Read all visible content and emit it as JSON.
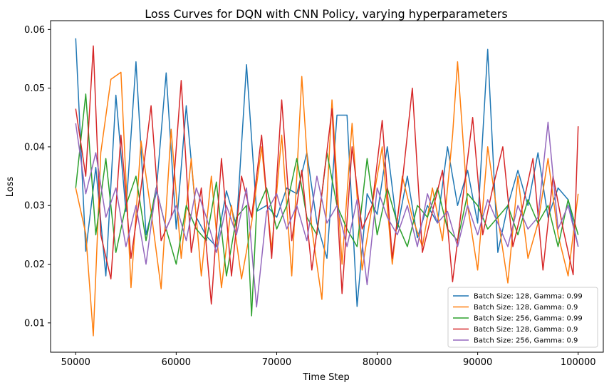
{
  "chart_data": {
    "type": "line",
    "title": "Loss Curves for DQN with CNN Policy, varying hyperparameters",
    "xlabel": "Time Step",
    "ylabel": "Loss",
    "xlim": [
      47500,
      102500
    ],
    "ylim": [
      0.005,
      0.0615
    ],
    "xticks": [
      50000,
      60000,
      70000,
      80000,
      90000,
      100000
    ],
    "xtick_labels": [
      "50000",
      "60000",
      "70000",
      "80000",
      "90000",
      "100000"
    ],
    "yticks": [
      0.01,
      0.02,
      0.03,
      0.04,
      0.05,
      0.06
    ],
    "ytick_labels": [
      "0.01",
      "0.02",
      "0.03",
      "0.04",
      "0.05",
      "0.06"
    ],
    "grid": false,
    "legend_position": "lower-right",
    "series": [
      {
        "name": "Batch Size: 128, Gamma: 0.99",
        "color": "#1f77b4",
        "x": [
          50000,
          51000,
          52000,
          53000,
          54000,
          55000,
          56000,
          57000,
          58000,
          59000,
          60000,
          61000,
          62000,
          63000,
          64000,
          65000,
          66000,
          67000,
          68000,
          69000,
          70000,
          71000,
          72000,
          73000,
          74000,
          75000,
          76000,
          77000,
          78000,
          79000,
          80000,
          81000,
          82000,
          83000,
          84000,
          85000,
          86000,
          87000,
          88000,
          89000,
          90000,
          91000,
          92000,
          93000,
          94000,
          95000,
          96000,
          97000,
          98000,
          99000,
          100000
        ],
        "y": [
          0.0585,
          0.0222,
          0.0365,
          0.018,
          0.0488,
          0.029,
          0.0545,
          0.025,
          0.032,
          0.0526,
          0.026,
          0.047,
          0.028,
          0.0248,
          0.023,
          0.0325,
          0.0265,
          0.054,
          0.029,
          0.03,
          0.028,
          0.033,
          0.032,
          0.039,
          0.027,
          0.021,
          0.0454,
          0.0454,
          0.0128,
          0.032,
          0.0285,
          0.04,
          0.026,
          0.035,
          0.0245,
          0.03,
          0.027,
          0.04,
          0.03,
          0.036,
          0.027,
          0.0566,
          0.022,
          0.03,
          0.036,
          0.03,
          0.039,
          0.028,
          0.033,
          0.031,
          0.023
        ]
      },
      {
        "name": "Batch Size: 128, Gamma: 0.9",
        "color": "#ff7f0e",
        "x": [
          50000,
          51000,
          51750,
          52500,
          53500,
          54500,
          55500,
          56500,
          57500,
          58500,
          59500,
          60500,
          61500,
          62500,
          63500,
          64500,
          65500,
          66500,
          67500,
          68500,
          69500,
          70500,
          71500,
          72500,
          73500,
          74500,
          75500,
          76500,
          77500,
          78500,
          79500,
          80500,
          81500,
          82500,
          83500,
          84500,
          85500,
          86500,
          87500,
          88000,
          89000,
          90000,
          91000,
          92000,
          93000,
          94000,
          95000,
          96000,
          97000,
          98000,
          99000,
          100000
        ],
        "y": [
          0.033,
          0.0252,
          0.0078,
          0.039,
          0.0515,
          0.0527,
          0.016,
          0.041,
          0.029,
          0.0158,
          0.043,
          0.021,
          0.038,
          0.018,
          0.035,
          0.016,
          0.03,
          0.0175,
          0.027,
          0.04,
          0.0225,
          0.042,
          0.018,
          0.052,
          0.026,
          0.014,
          0.048,
          0.02,
          0.044,
          0.019,
          0.03,
          0.04,
          0.02,
          0.035,
          0.028,
          0.023,
          0.033,
          0.024,
          0.042,
          0.0545,
          0.03,
          0.019,
          0.04,
          0.028,
          0.0168,
          0.035,
          0.021,
          0.027,
          0.038,
          0.025,
          0.018,
          0.032
        ]
      },
      {
        "name": "Batch Size: 256, Gamma: 0.99",
        "color": "#2ca02c",
        "x": [
          50000,
          51000,
          52000,
          53000,
          54000,
          55000,
          56000,
          57000,
          58000,
          59000,
          60000,
          61000,
          62000,
          63000,
          64000,
          65000,
          66000,
          67000,
          67500,
          68000,
          69000,
          70000,
          71000,
          72000,
          73000,
          74000,
          75000,
          76000,
          77000,
          78000,
          79000,
          80000,
          81000,
          82000,
          83000,
          84000,
          85000,
          86000,
          87000,
          88000,
          89000,
          90000,
          91000,
          92000,
          93000,
          94000,
          95000,
          96000,
          97000,
          98000,
          99000,
          100000
        ],
        "y": [
          0.033,
          0.049,
          0.025,
          0.038,
          0.022,
          0.03,
          0.035,
          0.024,
          0.033,
          0.026,
          0.02,
          0.03,
          0.026,
          0.024,
          0.034,
          0.018,
          0.028,
          0.03,
          0.0112,
          0.029,
          0.033,
          0.026,
          0.03,
          0.038,
          0.028,
          0.025,
          0.039,
          0.03,
          0.026,
          0.023,
          0.038,
          0.025,
          0.033,
          0.027,
          0.023,
          0.03,
          0.028,
          0.033,
          0.026,
          0.024,
          0.032,
          0.03,
          0.026,
          0.028,
          0.03,
          0.025,
          0.031,
          0.027,
          0.03,
          0.023,
          0.031,
          0.025
        ]
      },
      {
        "name": "Batch Size: 128, Gamma: 0.9",
        "color": "#d62728",
        "x": [
          50000,
          51000,
          51750,
          52500,
          53500,
          54500,
          55500,
          56500,
          57500,
          58500,
          59500,
          60500,
          61500,
          62500,
          63500,
          64500,
          65500,
          66500,
          67500,
          68500,
          69500,
          70500,
          71500,
          72500,
          73500,
          74500,
          75500,
          76500,
          77500,
          78500,
          79500,
          80500,
          81500,
          82500,
          83500,
          84500,
          85500,
          86500,
          87500,
          88500,
          89500,
          90500,
          91500,
          92500,
          93500,
          94500,
          95500,
          96500,
          97500,
          98500,
          99500,
          100000
        ],
        "y": [
          0.0465,
          0.035,
          0.0572,
          0.025,
          0.0175,
          0.042,
          0.021,
          0.033,
          0.047,
          0.024,
          0.028,
          0.0513,
          0.022,
          0.033,
          0.0132,
          0.038,
          0.018,
          0.035,
          0.028,
          0.042,
          0.021,
          0.048,
          0.024,
          0.036,
          0.019,
          0.032,
          0.0465,
          0.015,
          0.04,
          0.026,
          0.03,
          0.0445,
          0.021,
          0.034,
          0.05,
          0.022,
          0.029,
          0.036,
          0.017,
          0.031,
          0.045,
          0.025,
          0.033,
          0.04,
          0.023,
          0.03,
          0.038,
          0.019,
          0.035,
          0.026,
          0.0182,
          0.0435
        ]
      },
      {
        "name": "Batch Size: 256, Gamma: 0.9",
        "color": "#9467bd",
        "x": [
          50000,
          51000,
          52000,
          53000,
          54000,
          55000,
          56000,
          57000,
          58000,
          59000,
          60000,
          61000,
          62000,
          63000,
          64000,
          65000,
          66000,
          67000,
          68000,
          69000,
          70000,
          71000,
          72000,
          73000,
          74000,
          75000,
          76000,
          77000,
          78000,
          79000,
          80000,
          81000,
          82000,
          83000,
          84000,
          85000,
          86000,
          87000,
          88000,
          89000,
          90000,
          91000,
          92000,
          93000,
          94000,
          95000,
          96000,
          97000,
          98000,
          99000,
          100000
        ],
        "y": [
          0.044,
          0.032,
          0.039,
          0.028,
          0.033,
          0.023,
          0.03,
          0.02,
          0.033,
          0.026,
          0.03,
          0.024,
          0.033,
          0.028,
          0.022,
          0.03,
          0.025,
          0.033,
          0.0127,
          0.029,
          0.032,
          0.026,
          0.03,
          0.024,
          0.035,
          0.027,
          0.03,
          0.023,
          0.031,
          0.0165,
          0.033,
          0.028,
          0.025,
          0.03,
          0.023,
          0.032,
          0.027,
          0.029,
          0.023,
          0.03,
          0.025,
          0.031,
          0.027,
          0.023,
          0.03,
          0.026,
          0.028,
          0.0442,
          0.026,
          0.03,
          0.023
        ]
      }
    ]
  }
}
